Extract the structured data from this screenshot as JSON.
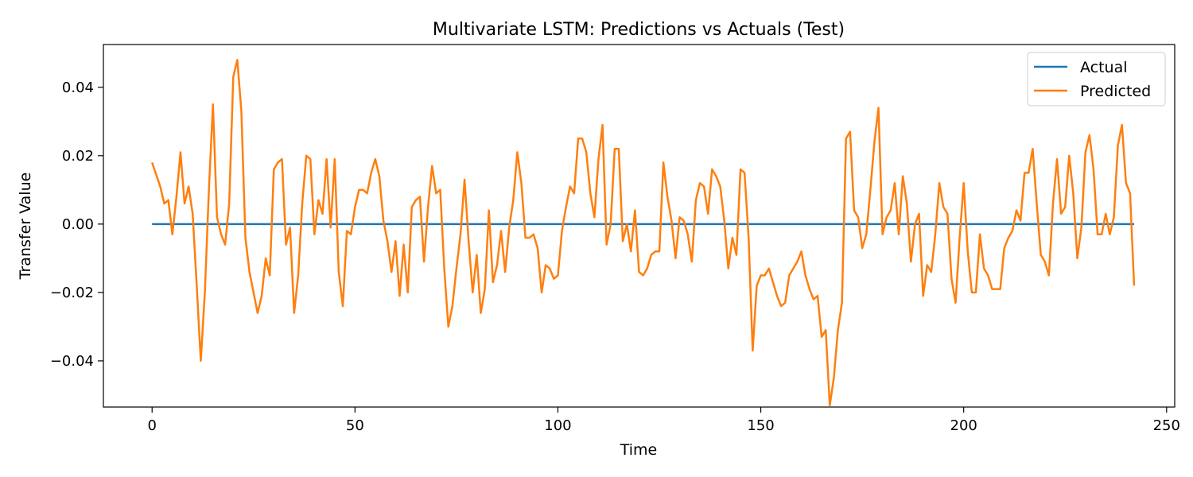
{
  "chart_data": {
    "type": "line",
    "title": "Multivariate LSTM: Predictions vs Actuals (Test)",
    "xlabel": "Time",
    "ylabel": "Transfer Value",
    "xlim": [
      -12,
      252
    ],
    "ylim": [
      -0.0535,
      0.0525
    ],
    "xticks": [
      0,
      50,
      100,
      150,
      200,
      250
    ],
    "xtick_labels": [
      "0",
      "50",
      "100",
      "150",
      "200",
      "250"
    ],
    "yticks": [
      0.04,
      0.02,
      0.0,
      -0.02,
      -0.04
    ],
    "ytick_labels": [
      "0.04",
      "0.02",
      "0.00",
      "−0.02",
      "−0.04"
    ],
    "grid": false,
    "legend_position": "top-right",
    "colors": {
      "actual": "#1f77b4",
      "predicted": "#ff7f0e"
    },
    "series": [
      {
        "name": "Actual",
        "x_start": 0,
        "x_step": 1,
        "values": [
          0,
          0,
          0,
          0,
          0,
          0,
          0,
          0,
          0,
          0,
          0,
          0,
          0,
          0,
          0,
          0,
          0,
          0,
          0,
          0,
          0,
          0,
          0,
          0,
          0,
          0,
          0,
          0,
          0,
          0,
          0,
          0,
          0,
          0,
          0,
          0,
          0,
          0,
          0,
          0,
          0,
          0,
          0,
          0,
          0,
          0,
          0,
          0,
          0,
          0,
          0,
          0,
          0,
          0,
          0,
          0,
          0,
          0,
          0,
          0,
          0,
          0,
          0,
          0,
          0,
          0,
          0,
          0,
          0,
          0,
          0,
          0,
          0,
          0,
          0,
          0,
          0,
          0,
          0,
          0,
          0,
          0,
          0,
          0,
          0,
          0,
          0,
          0,
          0,
          0,
          0,
          0,
          0,
          0,
          0,
          0,
          0,
          0,
          0,
          0,
          0,
          0,
          0,
          0,
          0,
          0,
          0,
          0,
          0,
          0,
          0,
          0,
          0,
          0,
          0,
          0,
          0,
          0,
          0,
          0,
          0,
          0,
          0,
          0,
          0,
          0,
          0,
          0,
          0,
          0,
          0,
          0,
          0,
          0,
          0,
          0,
          0,
          0,
          0,
          0,
          0,
          0,
          0,
          0,
          0,
          0,
          0,
          0,
          0,
          0,
          0,
          0,
          0,
          0,
          0,
          0,
          0,
          0,
          0,
          0,
          0,
          0,
          0,
          0,
          0,
          0,
          0,
          0,
          0,
          0,
          0,
          0,
          0,
          0,
          0,
          0,
          0,
          0,
          0,
          0,
          0,
          0,
          0,
          0,
          0,
          0,
          0,
          0,
          0,
          0,
          0,
          0,
          0,
          0,
          0,
          0,
          0,
          0,
          0,
          0,
          0,
          0,
          0,
          0,
          0,
          0,
          0,
          0,
          0,
          0,
          0,
          0,
          0,
          0,
          0,
          0,
          0,
          0,
          0,
          0,
          0,
          0,
          0,
          0,
          0,
          0,
          0,
          0,
          0,
          0,
          0,
          0,
          0,
          0,
          0,
          0,
          0,
          0,
          0,
          0,
          0,
          0,
          0
        ]
      },
      {
        "name": "Predicted",
        "x_start": 0,
        "x_step": 1,
        "values": [
          0.018,
          0.0145,
          0.011,
          0.006,
          0.007,
          -0.003,
          0.008,
          0.021,
          0.006,
          0.011,
          0.003,
          -0.018,
          -0.04,
          -0.02,
          0.01,
          0.035,
          0.002,
          -0.003,
          -0.006,
          0.006,
          0.043,
          0.048,
          0.033,
          -0.004,
          -0.014,
          -0.02,
          -0.026,
          -0.021,
          -0.01,
          -0.015,
          0.016,
          0.018,
          0.019,
          -0.006,
          -0.001,
          -0.026,
          -0.015,
          0.006,
          0.02,
          0.019,
          -0.003,
          0.007,
          0.003,
          0.019,
          -0.001,
          0.019,
          -0.014,
          -0.024,
          -0.002,
          -0.003,
          0.005,
          0.01,
          0.01,
          0.009,
          0.015,
          0.019,
          0.014,
          0.001,
          -0.005,
          -0.014,
          -0.005,
          -0.021,
          -0.006,
          -0.02,
          0.005,
          0.007,
          0.008,
          -0.011,
          0.005,
          0.017,
          0.009,
          0.01,
          -0.013,
          -0.03,
          -0.024,
          -0.013,
          -0.003,
          0.013,
          -0.005,
          -0.02,
          -0.009,
          -0.026,
          -0.019,
          0.004,
          -0.017,
          -0.012,
          -0.002,
          -0.014,
          -0.001,
          0.007,
          0.021,
          0.012,
          -0.004,
          -0.004,
          -0.003,
          -0.007,
          -0.02,
          -0.012,
          -0.013,
          -0.016,
          -0.015,
          -0.002,
          0.005,
          0.011,
          0.009,
          0.025,
          0.025,
          0.021,
          0.009,
          0.002,
          0.019,
          0.029,
          -0.006,
          0.0,
          0.022,
          0.022,
          -0.005,
          0.0,
          -0.008,
          0.004,
          -0.014,
          -0.015,
          -0.013,
          -0.009,
          -0.008,
          -0.008,
          0.018,
          0.008,
          0.001,
          -0.01,
          0.002,
          0.001,
          -0.003,
          -0.011,
          0.007,
          0.012,
          0.011,
          0.003,
          0.016,
          0.014,
          0.011,
          0.001,
          -0.013,
          -0.004,
          -0.009,
          0.016,
          0.015,
          -0.004,
          -0.037,
          -0.018,
          -0.015,
          -0.015,
          -0.013,
          -0.017,
          -0.021,
          -0.024,
          -0.023,
          -0.015,
          -0.013,
          -0.011,
          -0.008,
          -0.015,
          -0.019,
          -0.022,
          -0.021,
          -0.033,
          -0.031,
          -0.053,
          -0.045,
          -0.031,
          -0.023,
          0.025,
          0.027,
          0.004,
          0.002,
          -0.007,
          -0.003,
          0.01,
          0.024,
          0.034,
          -0.003,
          0.002,
          0.004,
          0.012,
          -0.003,
          0.014,
          0.006,
          -0.011,
          0.0,
          0.003,
          -0.021,
          -0.012,
          -0.014,
          -0.003,
          0.012,
          0.005,
          0.003,
          -0.016,
          -0.023,
          -0.004,
          0.012,
          -0.008,
          -0.02,
          -0.02,
          -0.003,
          -0.013,
          -0.015,
          -0.019,
          -0.019,
          -0.019,
          -0.007,
          -0.004,
          -0.002,
          0.004,
          0.001,
          0.015,
          0.015,
          0.022,
          0.006,
          -0.009,
          -0.011,
          -0.015,
          0.006,
          0.019,
          0.003,
          0.005,
          0.02,
          0.009,
          -0.01,
          -0.001,
          0.021,
          0.026,
          0.016,
          -0.003,
          -0.003,
          0.003,
          -0.003,
          0.002,
          0.023,
          0.029,
          0.012,
          0.009,
          -0.018
        ]
      }
    ]
  }
}
